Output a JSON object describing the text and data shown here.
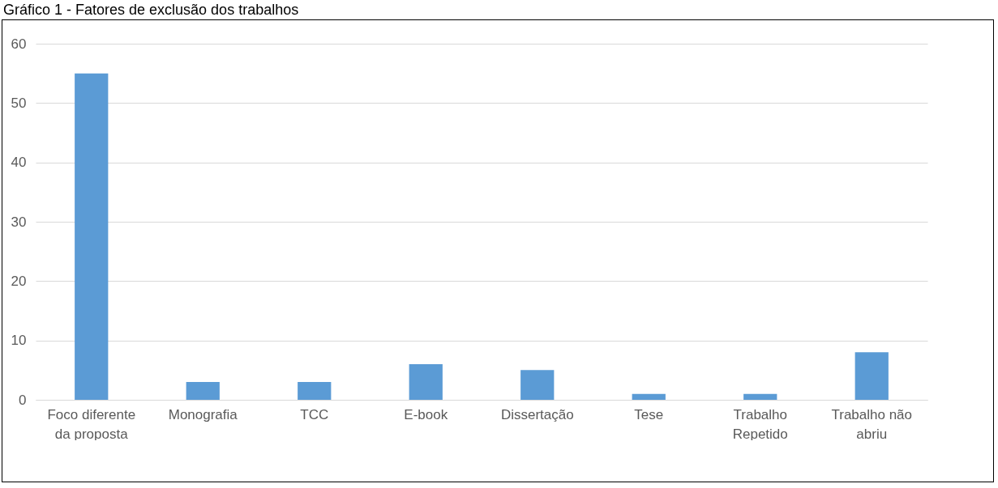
{
  "chart_data": {
    "type": "bar",
    "title": "Gráfico 1 - Fatores de exclusão dos trabalhos",
    "categories": [
      "Foco diferente da proposta",
      "Monografia",
      "TCC",
      "E-book",
      "Dissertação",
      "Tese",
      "Trabalho Repetido",
      "Trabalho não abriu"
    ],
    "values": [
      55,
      3,
      3,
      6,
      5,
      1,
      1,
      8
    ],
    "color": "#5b9bd5",
    "ylim": [
      0,
      60
    ],
    "yticks": [
      0,
      10,
      20,
      30,
      40,
      50,
      60
    ],
    "grid": "y"
  }
}
